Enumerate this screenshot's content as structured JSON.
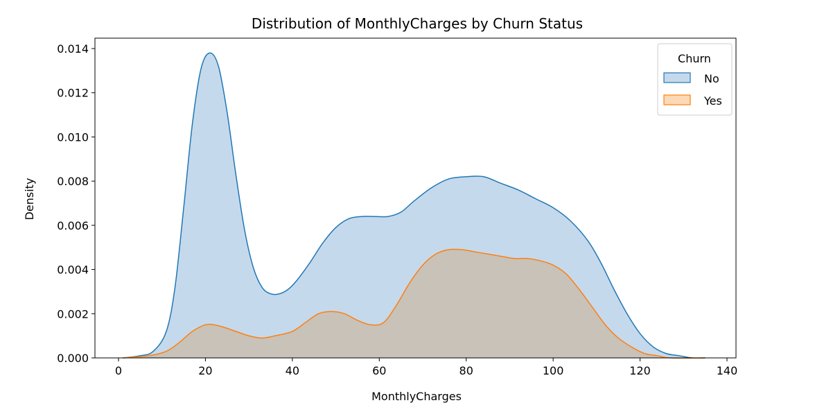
{
  "chart_data": {
    "type": "area",
    "title": "Distribution of MonthlyCharges by Churn Status",
    "xlabel": "MonthlyCharges",
    "ylabel": "Density",
    "xlim": [
      -5,
      141
    ],
    "ylim": [
      0,
      0.0145
    ],
    "x_ticks": [
      0,
      20,
      40,
      60,
      80,
      100,
      120,
      140
    ],
    "x_tick_labels": [
      "0",
      "20",
      "40",
      "60",
      "80",
      "100",
      "120",
      "140"
    ],
    "y_ticks": [
      0,
      0.002,
      0.004,
      0.006,
      0.008,
      0.01,
      0.012,
      0.014
    ],
    "y_tick_labels": [
      "0.000",
      "0.002",
      "0.004",
      "0.006",
      "0.008",
      "0.010",
      "0.012",
      "0.014"
    ],
    "grid": false,
    "legend": {
      "title": "Churn",
      "placement": "top-right"
    },
    "series": [
      {
        "name": "No",
        "color": "#1f77b4",
        "fill": "#c5d9ec",
        "x": [
          1,
          5,
          8,
          11,
          13,
          15,
          17,
          19,
          21,
          23,
          25,
          27,
          29,
          31,
          33,
          35,
          37,
          39,
          41,
          44,
          47,
          50,
          53,
          56,
          59,
          62,
          65,
          68,
          72,
          76,
          80,
          84,
          88,
          92,
          96,
          100,
          104,
          108,
          111,
          114,
          117,
          120,
          123,
          126,
          129,
          132,
          135
        ],
        "y": [
          0.0,
          0.0001,
          0.0003,
          0.0012,
          0.0032,
          0.0068,
          0.0106,
          0.0131,
          0.0138,
          0.0132,
          0.0111,
          0.0083,
          0.0058,
          0.0041,
          0.0032,
          0.0029,
          0.0029,
          0.0031,
          0.0035,
          0.0043,
          0.0052,
          0.0059,
          0.0063,
          0.0064,
          0.0064,
          0.0064,
          0.0066,
          0.0071,
          0.0077,
          0.0081,
          0.0082,
          0.0082,
          0.0079,
          0.0076,
          0.0072,
          0.0068,
          0.0062,
          0.0053,
          0.0043,
          0.0031,
          0.002,
          0.0011,
          0.0005,
          0.0002,
          0.0001,
          0.0,
          0.0
        ]
      },
      {
        "name": "Yes",
        "color": "#ff7f0e",
        "fill": "#c8c2b9",
        "x": [
          1,
          7,
          11,
          14,
          17,
          20,
          22,
          24,
          27,
          30,
          33,
          36,
          40,
          43,
          46,
          49,
          52,
          55,
          58,
          61,
          64,
          67,
          70,
          73,
          76,
          79,
          82,
          85,
          88,
          91,
          94,
          97,
          100,
          103,
          106,
          109,
          112,
          115,
          118,
          121,
          124,
          127,
          135
        ],
        "y": [
          0.0,
          0.0001,
          0.0003,
          0.0007,
          0.0012,
          0.0015,
          0.0015,
          0.0014,
          0.0012,
          0.001,
          0.0009,
          0.001,
          0.0012,
          0.0016,
          0.002,
          0.0021,
          0.002,
          0.0017,
          0.0015,
          0.0016,
          0.0024,
          0.0034,
          0.0042,
          0.0047,
          0.0049,
          0.0049,
          0.0048,
          0.0047,
          0.0046,
          0.0045,
          0.0045,
          0.0044,
          0.0042,
          0.0038,
          0.0031,
          0.0023,
          0.0015,
          0.0009,
          0.0005,
          0.0002,
          0.0001,
          0.0,
          0.0
        ]
      }
    ]
  }
}
